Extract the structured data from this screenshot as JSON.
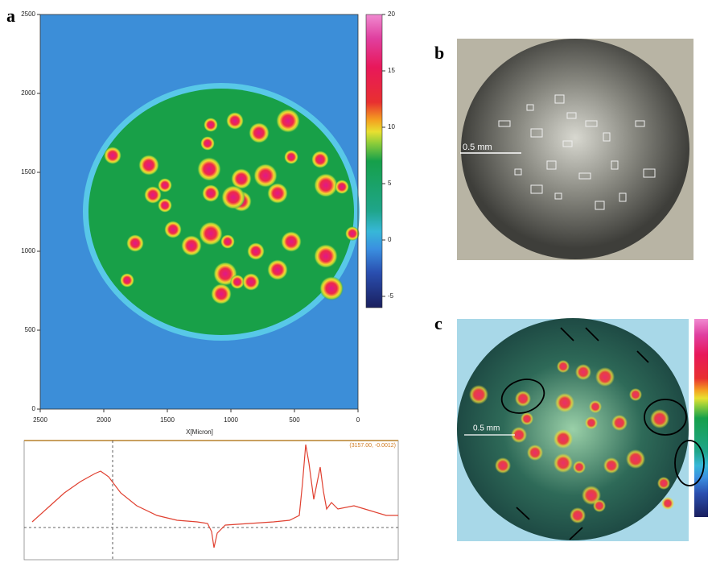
{
  "chart_data": {
    "type": "heatmap",
    "panel_label": "a",
    "xlabel": "X[Micron]",
    "xlim": [
      2500,
      0
    ],
    "ylim": [
      0,
      2500
    ],
    "xticks": [
      2500,
      2000,
      1500,
      1000,
      500,
      0
    ],
    "yticks": [
      0,
      500,
      1000,
      1500,
      2000,
      2500
    ],
    "colorbar": {
      "lim": [
        -6,
        20
      ],
      "ticks": [
        20,
        15,
        10,
        5,
        0,
        -5
      ]
    }
  },
  "spectrum": {
    "cursor_label": "(3157.00, -0.0012)"
  },
  "panel_b": {
    "label": "b",
    "scale_bar": "0.5 mm"
  },
  "panel_c": {
    "label": "c",
    "scale_bar": "0.5 mm"
  }
}
